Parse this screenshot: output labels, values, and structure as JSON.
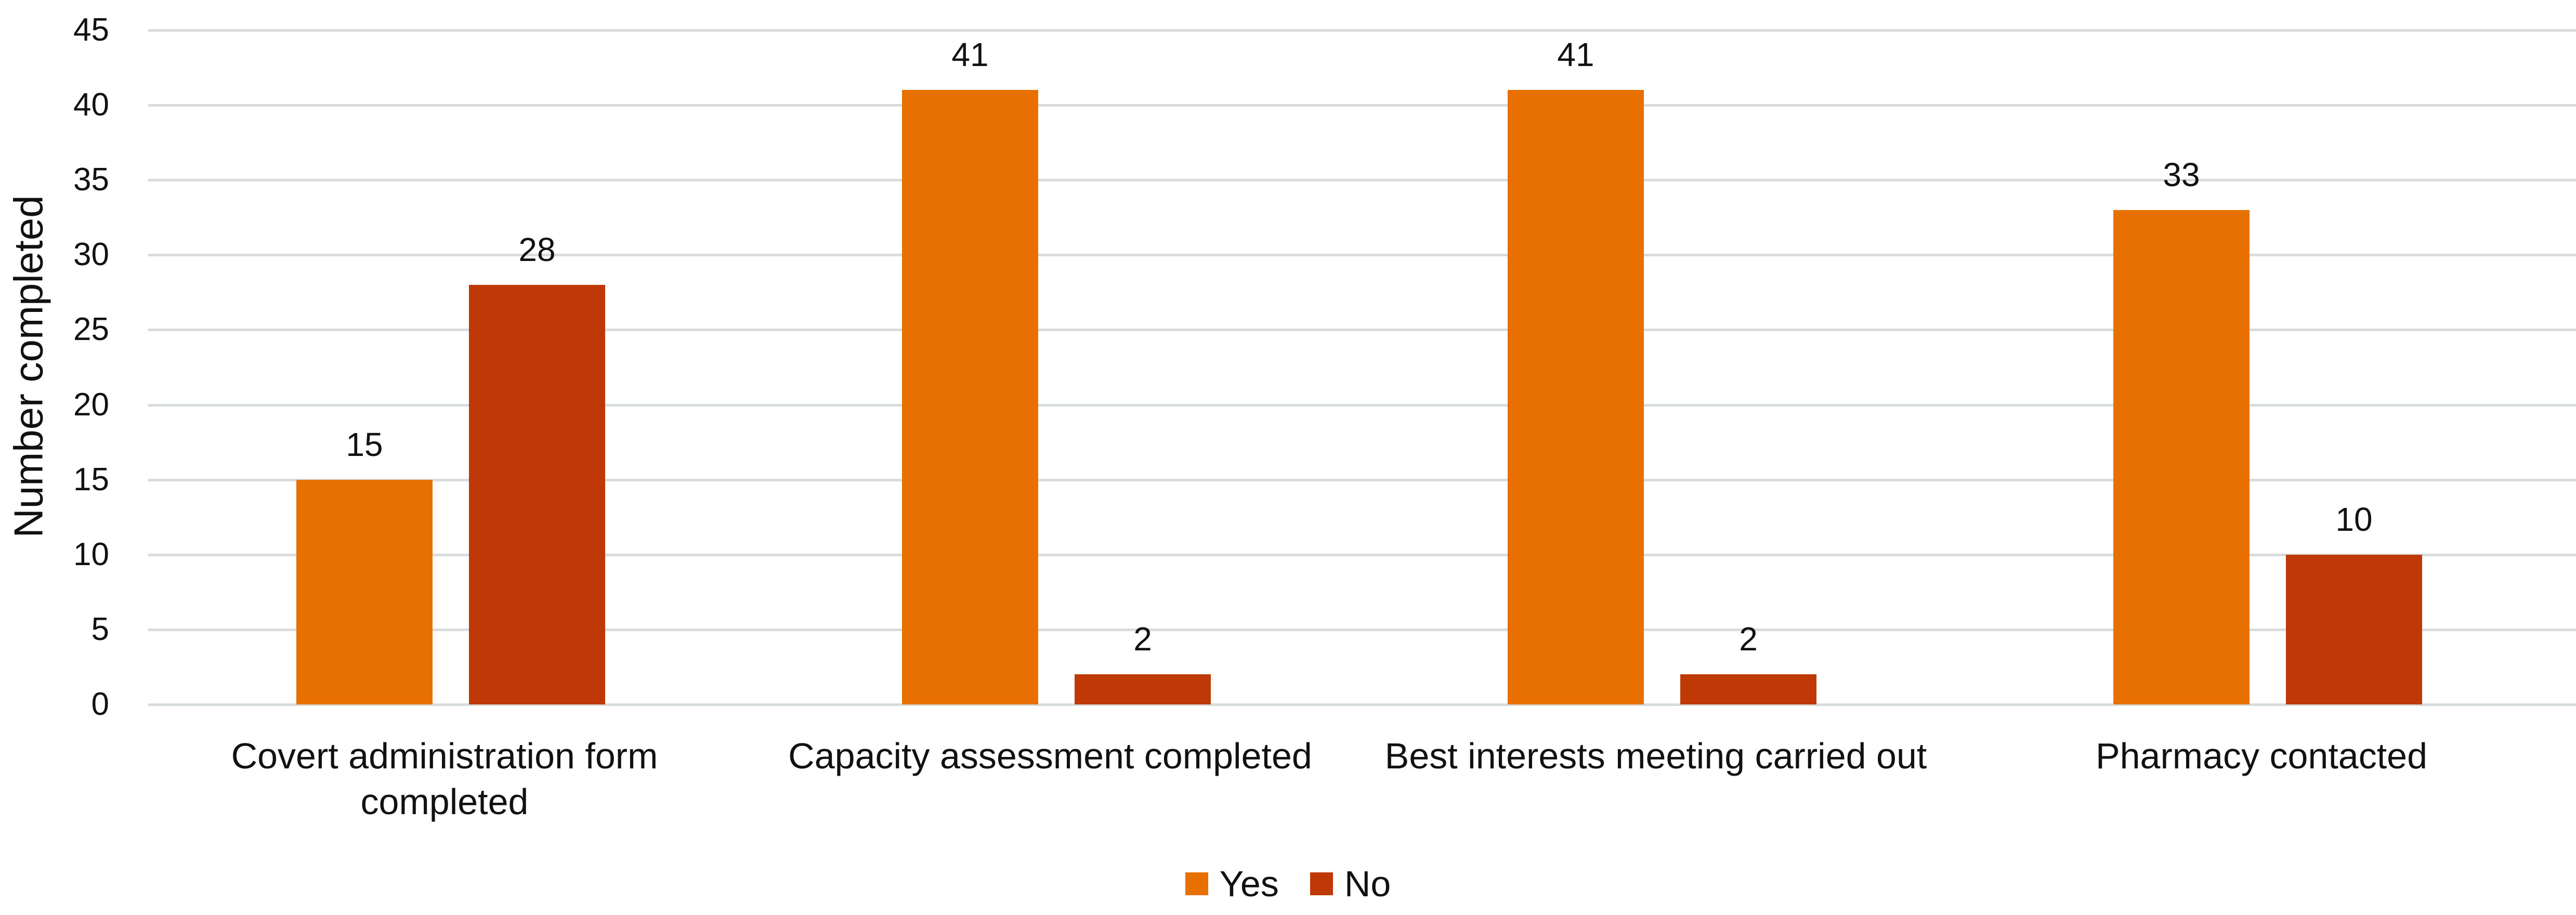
{
  "chart_data": {
    "type": "bar",
    "title": "",
    "xlabel": "",
    "ylabel": "Number completed",
    "ylim": [
      0,
      45
    ],
    "yticks": [
      0,
      5,
      10,
      15,
      20,
      25,
      30,
      35,
      40,
      45
    ],
    "grid": true,
    "legend_position": "bottom",
    "categories": [
      "Covert administration form completed",
      "Capacity assessment completed",
      "Best interests meeting carried out",
      "Pharmacy contacted"
    ],
    "series": [
      {
        "name": "Yes",
        "color": "#e87000",
        "values": [
          15,
          41,
          41,
          33
        ]
      },
      {
        "name": "No",
        "color": "#bf3906",
        "values": [
          28,
          2,
          2,
          10
        ]
      }
    ],
    "data_labels": true
  },
  "axis": {
    "ylabel": "Number completed",
    "ticks": [
      "0",
      "5",
      "10",
      "15",
      "20",
      "25",
      "30",
      "35",
      "40",
      "45"
    ]
  },
  "categories": [
    {
      "line1": "Covert administration form",
      "line2": "completed"
    },
    {
      "line1": "Capacity assessment completed",
      "line2": ""
    },
    {
      "line1": "Best interests meeting carried out",
      "line2": ""
    },
    {
      "line1": "Pharmacy contacted",
      "line2": ""
    }
  ],
  "legend": [
    {
      "label": "Yes",
      "color": "#e87000"
    },
    {
      "label": "No",
      "color": "#bf3906"
    }
  ]
}
